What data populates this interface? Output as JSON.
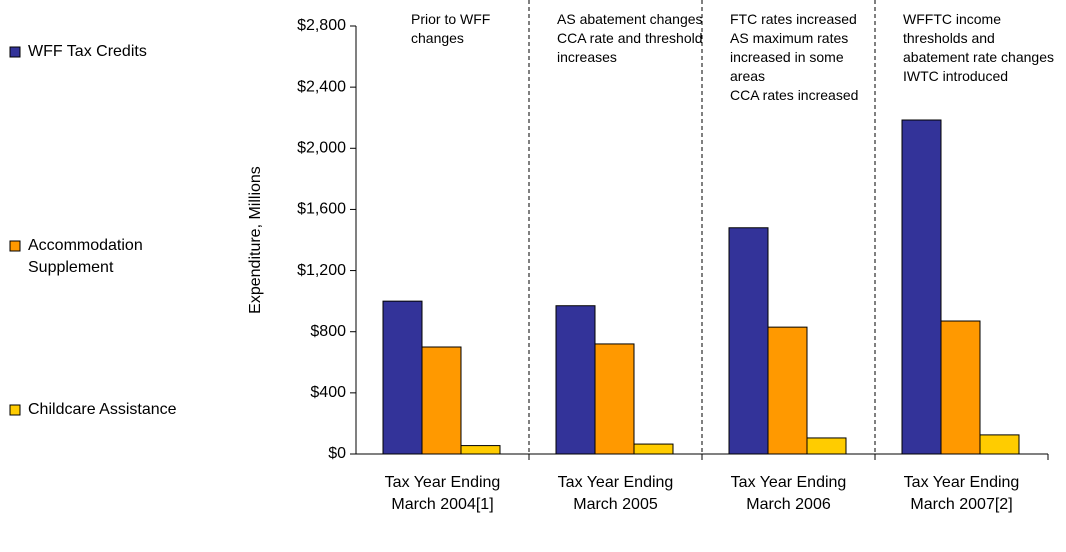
{
  "chart_data": {
    "type": "bar",
    "y_label": "Expenditure, Millions",
    "categories": [
      "Tax Year Ending March 2004[1]",
      "Tax Year Ending March 2005",
      "Tax Year Ending March 2006",
      "Tax Year Ending March 2007[2]"
    ],
    "series": [
      {
        "name": "WFF Tax Credits",
        "color": "#333399",
        "values": [
          1000,
          970,
          1480,
          2185
        ]
      },
      {
        "name": "Accommodation Supplement",
        "color": "#ff9900",
        "values": [
          700,
          720,
          830,
          870
        ]
      },
      {
        "name": "Childcare Assistance",
        "color": "#ffcc00",
        "values": [
          55,
          65,
          105,
          125
        ]
      }
    ],
    "annotations": [
      [
        "Prior to WFF changes"
      ],
      [
        "AS abatement changes",
        "CCA rate and threshold increases"
      ],
      [
        "FTC rates increased",
        "AS maximum rates increased in some areas",
        "CCA rates increased"
      ],
      [
        "WFFTC income thresholds and abatement rate changes",
        "IWTC introduced"
      ]
    ],
    "ylim": [
      0,
      2800
    ],
    "yticks": [
      {
        "value": 0,
        "label": "$0"
      },
      {
        "value": 400,
        "label": "$400"
      },
      {
        "value": 800,
        "label": "$800"
      },
      {
        "value": 1200,
        "label": "$1,200"
      },
      {
        "value": 1600,
        "label": "$1,600"
      },
      {
        "value": 2000,
        "label": "$2,000"
      },
      {
        "value": 2400,
        "label": "$2,400"
      },
      {
        "value": 2800,
        "label": "$2,800"
      }
    ],
    "grid": false
  }
}
